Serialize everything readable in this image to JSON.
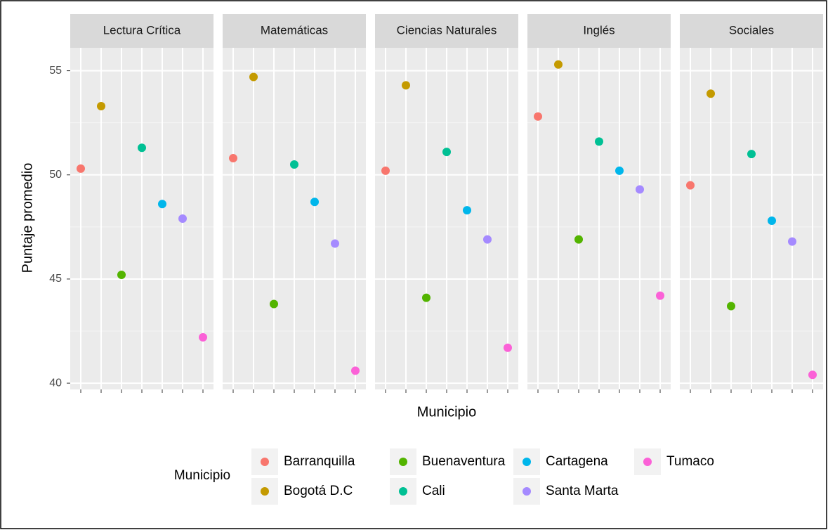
{
  "chart_data": {
    "type": "facet-dot",
    "facets": [
      "Lectura Crítica",
      "Matemáticas",
      "Ciencias Naturales",
      "Inglés",
      "Sociales"
    ],
    "series": [
      {
        "name": "Barranquilla",
        "color": "#F8766D",
        "values": [
          50.3,
          50.8,
          50.2,
          52.8,
          49.5
        ]
      },
      {
        "name": "Bogotá D.C",
        "color": "#C49A00",
        "values": [
          53.3,
          54.7,
          54.3,
          55.3,
          53.9
        ]
      },
      {
        "name": "Buenaventura",
        "color": "#53B400",
        "values": [
          45.2,
          43.8,
          44.1,
          46.9,
          43.7
        ]
      },
      {
        "name": "Cali",
        "color": "#00C094",
        "values": [
          51.3,
          50.5,
          51.1,
          51.6,
          51.0
        ]
      },
      {
        "name": "Cartagena",
        "color": "#00B6EB",
        "values": [
          48.6,
          48.7,
          48.3,
          50.2,
          47.8
        ]
      },
      {
        "name": "Santa Marta",
        "color": "#A58AFF",
        "values": [
          47.9,
          46.7,
          46.9,
          49.3,
          46.8
        ]
      },
      {
        "name": "Tumaco",
        "color": "#FB61D7",
        "values": [
          42.2,
          40.6,
          41.7,
          44.2,
          40.4
        ]
      }
    ],
    "ylim": [
      39.7,
      56.1
    ],
    "yticks": [
      40,
      45,
      50,
      55
    ],
    "grid": true,
    "xlabel": "Municipio",
    "ylabel": "Puntaje promedio",
    "legend_title": "Municipio",
    "legend": "bottom"
  }
}
